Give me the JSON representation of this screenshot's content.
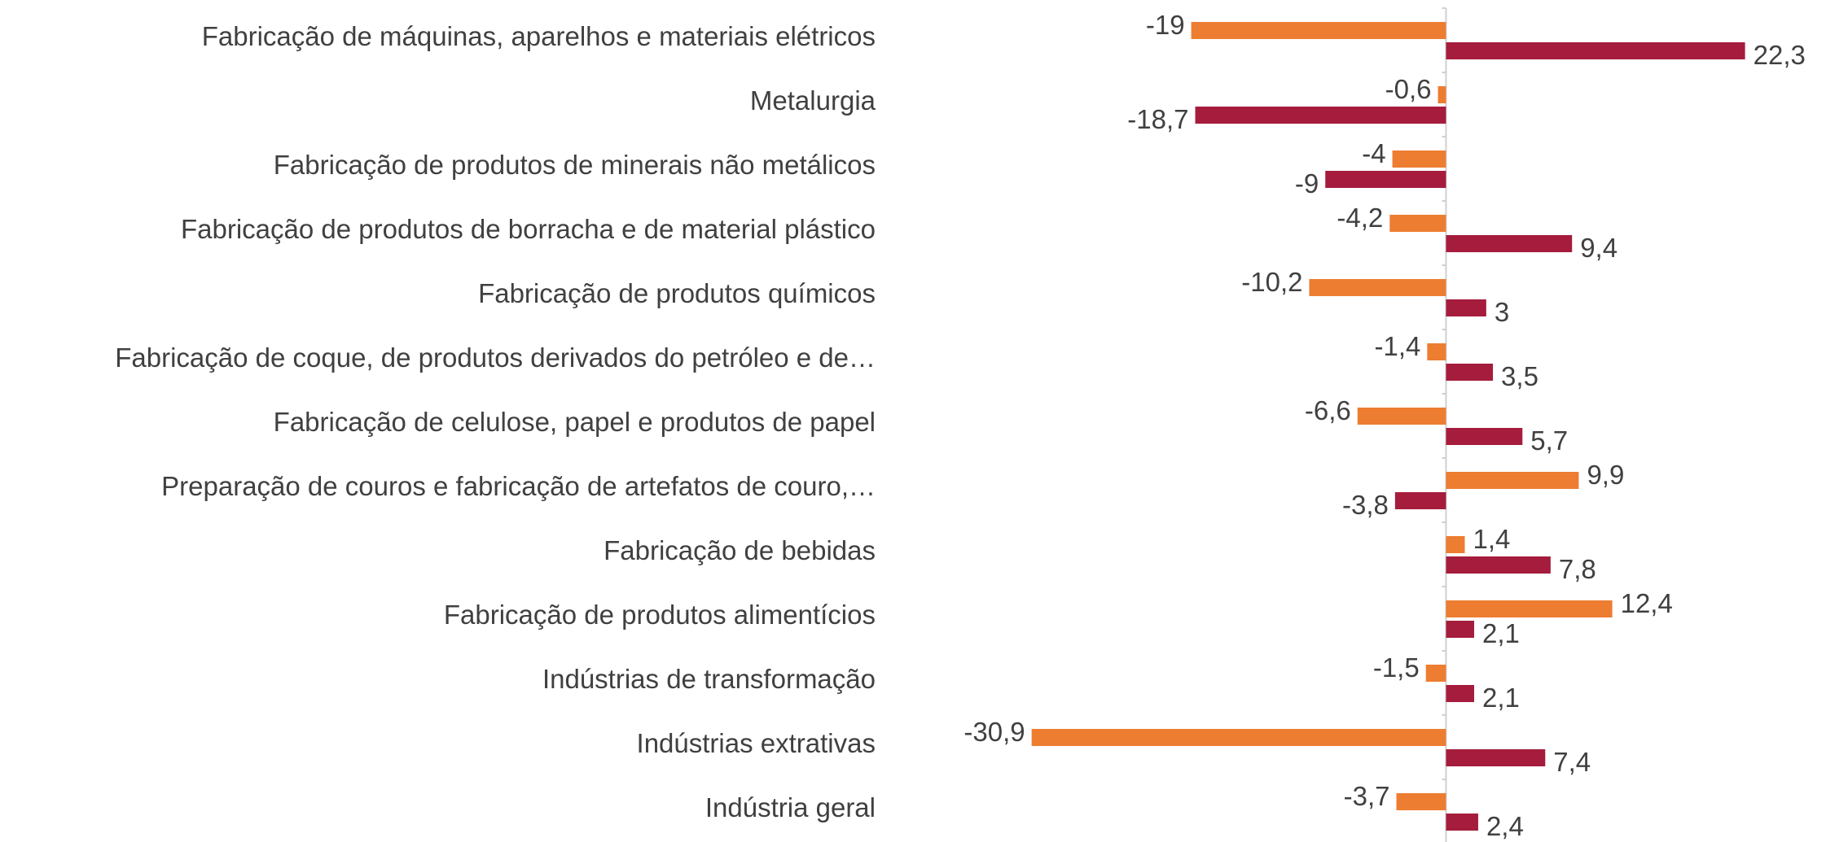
{
  "chart_data": {
    "type": "bar",
    "orientation": "horizontal",
    "categories": [
      "Fabricação de máquinas, aparelhos e materiais elétricos",
      "Metalurgia",
      "Fabricação de produtos de minerais não metálicos",
      "Fabricação de produtos de borracha e de material plástico",
      "Fabricação de produtos químicos",
      "Fabricação de coque, de produtos derivados do petróleo e de…",
      "Fabricação de celulose, papel e produtos de papel",
      "Preparação de couros e fabricação de artefatos de couro,…",
      "Fabricação de bebidas",
      "Fabricação de produtos alimentícios",
      "Indústrias de transformação",
      "Indústrias extrativas",
      "Indústria geral"
    ],
    "series": [
      {
        "color": "#ed7d31",
        "values": [
          -19,
          -0.6,
          -4,
          -4.2,
          -10.2,
          -1.4,
          -6.6,
          9.9,
          1.4,
          12.4,
          -1.5,
          -30.9,
          -3.7
        ],
        "value_labels": [
          "-19",
          "-0,6",
          "-4",
          "-4,2",
          "-10,2",
          "-1,4",
          "-6,6",
          "9,9",
          "1,4",
          "12,4",
          "-1,5",
          "-30,9",
          "-3,7"
        ]
      },
      {
        "color": "#a51c3c",
        "values": [
          22.3,
          -18.7,
          -9,
          9.4,
          3,
          3.5,
          5.7,
          -3.8,
          7.8,
          2.1,
          2.1,
          7.4,
          2.4
        ],
        "value_labels": [
          "22,3",
          "-18,7",
          "-9",
          "9,4",
          "3",
          "3,5",
          "5,7",
          "-3,8",
          "7,8",
          "2,1",
          "2,1",
          "7,4",
          "2,4"
        ]
      }
    ],
    "xlim": [
      -31,
      27
    ]
  }
}
